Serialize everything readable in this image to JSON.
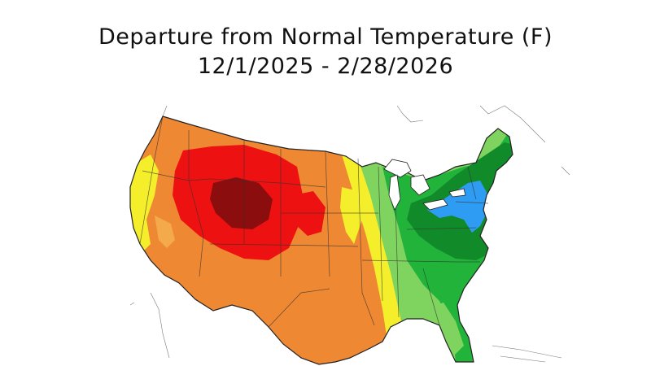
{
  "title": {
    "line1": "Departure from Normal Temperature (F)",
    "line2": "12/1/2025 - 2/28/2026"
  },
  "map": {
    "region": "Contiguous United States",
    "colors": {
      "warm_dark": "#8c0d0d",
      "warm_red": "#ee1111",
      "warm_orange": "#ee8833",
      "warm_lightorange": "#f4a94a",
      "warm_yellow": "#f4ef2a",
      "cool_lightgreen": "#7fd35f",
      "cool_green": "#22b33a",
      "cool_darkgreen": "#118a2a",
      "cold_blue": "#2f9cf3",
      "outline": "#222222",
      "background": "#ffffff"
    }
  }
}
